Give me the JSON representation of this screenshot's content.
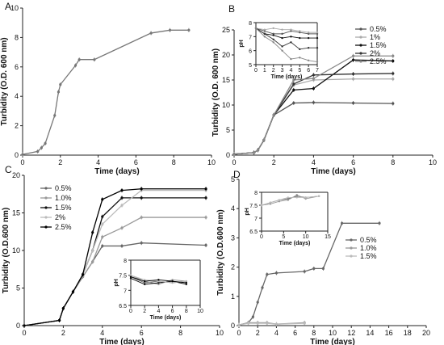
{
  "figure": {
    "panels": [
      "A",
      "B",
      "C",
      "D"
    ]
  },
  "chart_data": [
    {
      "panel": "A",
      "type": "line",
      "xlabel": "Time (days)",
      "ylabel": "Turbidity (O.D. 600 nm)",
      "xlim": [
        0,
        10
      ],
      "ylim": [
        0,
        10
      ],
      "xticks": [
        0,
        2,
        4,
        6,
        8,
        10
      ],
      "yticks": [
        0,
        2,
        4,
        6,
        8,
        10
      ],
      "series": [
        {
          "color": "#777777",
          "x": [
            0,
            0.8,
            1,
            1.2,
            1.7,
            1.9,
            2,
            2.8,
            3,
            3.8,
            6.8,
            7.8,
            8.8
          ],
          "y": [
            0.05,
            0.25,
            0.5,
            0.8,
            2.7,
            4.3,
            4.8,
            6.1,
            6.5,
            6.5,
            8.3,
            8.5,
            8.5
          ]
        }
      ]
    },
    {
      "panel": "B",
      "type": "line",
      "xlabel": "Time (days)",
      "ylabel": "Turbidity (O.D. 600 nm)",
      "xlim": [
        0,
        10
      ],
      "ylim": [
        0,
        25
      ],
      "xticks": [
        0,
        2,
        4,
        6,
        8,
        10
      ],
      "yticks": [
        0,
        5,
        10,
        15,
        20,
        25
      ],
      "legend": [
        "0.5%",
        "1%",
        "1.5%",
        "2%",
        "2.5%"
      ],
      "series": [
        {
          "name": "0.5%",
          "color": "#555555",
          "x": [
            0,
            1,
            1.2,
            1.5,
            2,
            3,
            4,
            6,
            8
          ],
          "y": [
            0.2,
            0.5,
            1,
            3,
            8,
            10.4,
            10.5,
            10.4,
            10.3
          ]
        },
        {
          "name": "1%",
          "color": "#aaaaaa",
          "x": [
            0,
            1,
            1.2,
            1.5,
            2,
            3,
            4,
            6,
            8
          ],
          "y": [
            0.2,
            0.5,
            1,
            3,
            8,
            14,
            15,
            15.2,
            15.2
          ]
        },
        {
          "name": "1.5%",
          "color": "#111111",
          "x": [
            0,
            1,
            1.2,
            1.5,
            2,
            3,
            4,
            6,
            8
          ],
          "y": [
            0.2,
            0.5,
            1,
            3,
            8,
            13,
            13.3,
            19,
            18.8
          ]
        },
        {
          "name": "2%",
          "color": "#333333",
          "x": [
            0,
            1,
            1.2,
            1.5,
            2,
            3,
            4,
            6,
            8
          ],
          "y": [
            0.2,
            0.5,
            1,
            3,
            8,
            14.2,
            16,
            16.2,
            16.3
          ]
        },
        {
          "name": "2.5%",
          "color": "#888888",
          "x": [
            0,
            1,
            1.2,
            1.5,
            2,
            3,
            4,
            6,
            8
          ],
          "y": [
            0.2,
            0.5,
            1,
            3,
            8,
            15,
            15.3,
            19.8,
            19.8
          ]
        }
      ],
      "inset": {
        "xlabel": "Time (days)",
        "ylabel": "pH",
        "xlim": [
          0,
          7
        ],
        "ylim": [
          5,
          8
        ],
        "xticks": [
          0,
          1,
          2,
          3,
          4,
          5,
          6,
          7
        ],
        "yticks": [
          5,
          6,
          7,
          8
        ],
        "series": [
          {
            "color": "#555555",
            "x": [
              0,
              1,
              2,
              3,
              4,
              5,
              6,
              7
            ],
            "y": [
              7.6,
              7.4,
              7.2,
              7.2,
              7.4,
              7.3,
              7.2,
              7.2
            ]
          },
          {
            "color": "#aaaaaa",
            "x": [
              0,
              1,
              2,
              3,
              4,
              5,
              6,
              7
            ],
            "y": [
              7.6,
              7.5,
              7.6,
              7.5,
              7.5,
              7.4,
              7.3,
              7.3
            ]
          },
          {
            "color": "#111111",
            "x": [
              0,
              1,
              2,
              3,
              4,
              5,
              6,
              7
            ],
            "y": [
              7.6,
              7.2,
              7.1,
              6.9,
              7.0,
              6.9,
              6.9,
              6.9
            ]
          },
          {
            "color": "#333333",
            "x": [
              0,
              1,
              2,
              3,
              4,
              5,
              6,
              7
            ],
            "y": [
              7.6,
              7.2,
              6.8,
              6.3,
              6.6,
              6.1,
              6.2,
              6.2
            ]
          },
          {
            "color": "#888888",
            "x": [
              0,
              1,
              2,
              3,
              4,
              5,
              6,
              7
            ],
            "y": [
              7.6,
              7.0,
              6.6,
              6.0,
              5.4,
              5.5,
              5.3,
              5.2
            ]
          }
        ]
      }
    },
    {
      "panel": "C",
      "type": "line",
      "xlabel": "Time (days)",
      "ylabel": "Turbidity (O.D.600 nm)",
      "xlim": [
        0,
        10
      ],
      "ylim": [
        0,
        20
      ],
      "xticks": [
        0,
        2,
        4,
        6,
        8,
        10
      ],
      "yticks": [
        0,
        5,
        10,
        15,
        20
      ],
      "legend": [
        "0.5%",
        "1.0%",
        "1.5%",
        "2%",
        "2.5%"
      ],
      "series": [
        {
          "name": "0.5%",
          "color": "#666666",
          "x": [
            0,
            1.8,
            2,
            2.5,
            3,
            3.5,
            4,
            5,
            6,
            9.3
          ],
          "y": [
            0,
            0.7,
            2.3,
            4.5,
            6.5,
            8.5,
            10.6,
            10.6,
            11,
            10.7
          ]
        },
        {
          "name": "1.0%",
          "color": "#999999",
          "x": [
            0,
            1.8,
            2,
            2.5,
            3,
            3.5,
            4,
            5,
            6,
            9.3
          ],
          "y": [
            0,
            0.7,
            2.3,
            4.5,
            6.5,
            8.5,
            11.8,
            13,
            14.4,
            14.4
          ]
        },
        {
          "name": "1.5%",
          "color": "#111111",
          "x": [
            0,
            1.8,
            2,
            2.5,
            3,
            3.5,
            4,
            5,
            6,
            9.3
          ],
          "y": [
            0,
            0.7,
            2.3,
            4.5,
            6.8,
            10,
            14.5,
            17,
            17,
            17
          ]
        },
        {
          "name": "2%",
          "color": "#bbbbbb",
          "x": [
            0,
            1.8,
            2,
            2.5,
            3,
            3.5,
            4,
            5,
            6,
            9.3
          ],
          "y": [
            0,
            0.7,
            2.3,
            4.5,
            6.8,
            10,
            13.5,
            16,
            18,
            18
          ]
        },
        {
          "name": "2.5%",
          "color": "#000000",
          "x": [
            0,
            1.8,
            2,
            2.5,
            3,
            3.5,
            4,
            5,
            6,
            9.3
          ],
          "y": [
            0,
            0.7,
            2.3,
            4.5,
            6.8,
            12.4,
            16.8,
            18,
            18.2,
            18.2
          ]
        }
      ],
      "inset": {
        "xlabel": "Time (days)",
        "ylabel": "pH",
        "xlim": [
          0,
          10
        ],
        "ylim": [
          6.5,
          8.0
        ],
        "xticks": [
          0,
          2,
          4,
          6,
          8,
          10
        ],
        "yticks": [
          6.5,
          7.0,
          7.5,
          8.0
        ],
        "series": [
          {
            "color": "#666666",
            "x": [
              0,
              2,
              4,
              6,
              8
            ],
            "y": [
              7.45,
              7.25,
              7.3,
              7.25,
              7.3
            ]
          },
          {
            "color": "#999999",
            "x": [
              0,
              2,
              4,
              6,
              8
            ],
            "y": [
              7.5,
              7.3,
              7.2,
              7.35,
              7.3
            ]
          },
          {
            "color": "#111111",
            "x": [
              0,
              2,
              4,
              6,
              8
            ],
            "y": [
              7.4,
              7.2,
              7.25,
              7.3,
              7.2
            ]
          },
          {
            "color": "#bbbbbb",
            "x": [
              0,
              2,
              4,
              6,
              8
            ],
            "y": [
              7.5,
              7.35,
              7.3,
              7.25,
              7.3
            ]
          },
          {
            "color": "#000000",
            "x": [
              0,
              2,
              4,
              6,
              8
            ],
            "y": [
              7.45,
              7.3,
              7.35,
              7.3,
              7.25
            ]
          }
        ]
      }
    },
    {
      "panel": "D",
      "type": "line",
      "xlabel": "Time (days)",
      "ylabel": "Turbidity (O.D.600 nm)",
      "xlim": [
        0,
        20
      ],
      "ylim": [
        0,
        5
      ],
      "xticks": [
        0,
        2,
        4,
        6,
        8,
        10,
        12,
        14,
        16,
        18,
        20
      ],
      "yticks": [
        0,
        1,
        2,
        3,
        4,
        5
      ],
      "legend": [
        "0.5%",
        "1.0%",
        "1.5%"
      ],
      "series": [
        {
          "name": "0.5%",
          "color": "#666666",
          "x": [
            0,
            1,
            1.5,
            2,
            2.5,
            3,
            4,
            7,
            8,
            9,
            11,
            15
          ],
          "y": [
            0.02,
            0.1,
            0.3,
            0.8,
            1.3,
            1.75,
            1.8,
            1.85,
            1.95,
            1.95,
            3.5,
            3.5
          ]
        },
        {
          "name": "1.0%",
          "color": "#999999",
          "x": [
            0,
            1,
            2,
            3,
            4,
            7
          ],
          "y": [
            0.02,
            0.1,
            0.1,
            0.1,
            0.05,
            0.1
          ]
        },
        {
          "name": "1.5%",
          "color": "#bbbbbb",
          "x": [
            0,
            1,
            2,
            3,
            4,
            7
          ],
          "y": [
            0.02,
            0.08,
            0.08,
            0.08,
            0.05,
            0.08
          ]
        }
      ],
      "inset": {
        "xlabel": "Time (days)",
        "ylabel": "pH",
        "xlim": [
          0,
          15
        ],
        "ylim": [
          6.5,
          8.0
        ],
        "xticks": [
          0,
          5,
          10,
          15
        ],
        "yticks": [
          6.5,
          7.0,
          7.5,
          8.0
        ],
        "series": [
          {
            "color": "#666666",
            "x": [
              0,
              2,
              4,
              6,
              8,
              10,
              13
            ],
            "y": [
              7.5,
              7.6,
              7.7,
              7.75,
              7.85,
              7.8,
              7.85
            ]
          },
          {
            "color": "#999999",
            "x": [
              0,
              2,
              4,
              6,
              8,
              10,
              13
            ],
            "y": [
              7.5,
              7.55,
              7.65,
              7.7,
              7.9,
              7.75,
              7.85
            ]
          },
          {
            "color": "#bbbbbb",
            "x": [
              0,
              2,
              4,
              6,
              8,
              10,
              13
            ],
            "y": [
              7.5,
              7.6,
              7.7,
              7.8,
              7.8,
              7.8,
              7.85
            ]
          }
        ]
      }
    }
  ]
}
